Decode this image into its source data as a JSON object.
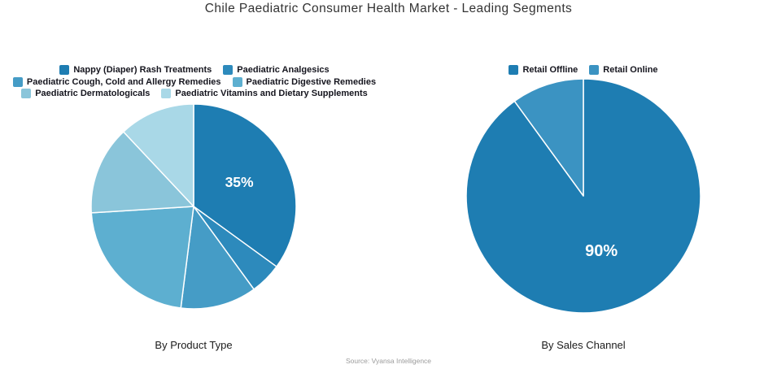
{
  "header": {
    "title": "Chile Paediatric Consumer Health Market - Leading Segments"
  },
  "footer": {
    "source": "Source: Vyansa Intelligence"
  },
  "colors": {
    "background": "#ffffff",
    "title_text": "#333333",
    "legend_text": "#15151e",
    "caption_text": "#1c1c1c",
    "source_text": "#9b9b9b",
    "slice_separator": "#ffffff",
    "data_label_text": "#ffffff"
  },
  "chart_data": [
    {
      "type": "pie",
      "title": "By Product Type",
      "units": "%",
      "total": 100,
      "start_angle_deg": 0,
      "direction": "clockwise",
      "legend_position": "top",
      "legend_columns": 2,
      "segments": [
        {
          "label": "Nappy (Diaper) Rash Treatments",
          "value": 35,
          "color": "#1e7db2",
          "data_label": "35%"
        },
        {
          "label": "Paediatric Analgesics",
          "value": 5,
          "color": "#2d8abc",
          "data_label": ""
        },
        {
          "label": "Paediatric Cough, Cold and Allergy Remedies",
          "value": 12,
          "color": "#459cc6",
          "data_label": ""
        },
        {
          "label": "Paediatric Digestive Remedies",
          "value": 22,
          "color": "#5dafd0",
          "data_label": ""
        },
        {
          "label": "Paediatric Dermatologicals",
          "value": 14,
          "color": "#8ac5da",
          "data_label": ""
        },
        {
          "label": "Paediatric Vitamins and Dietary Supplements",
          "value": 12,
          "color": "#a9d8e7",
          "data_label": ""
        }
      ]
    },
    {
      "type": "pie",
      "title": "By Sales Channel",
      "units": "%",
      "total": 100,
      "start_angle_deg": 0,
      "direction": "clockwise",
      "legend_position": "top",
      "legend_columns": 2,
      "segments": [
        {
          "label": "Retail Offline",
          "value": 90,
          "color": "#1e7db2",
          "data_label": "90%"
        },
        {
          "label": "Retail Online",
          "value": 10,
          "color": "#3b93c2",
          "data_label": ""
        }
      ]
    }
  ]
}
